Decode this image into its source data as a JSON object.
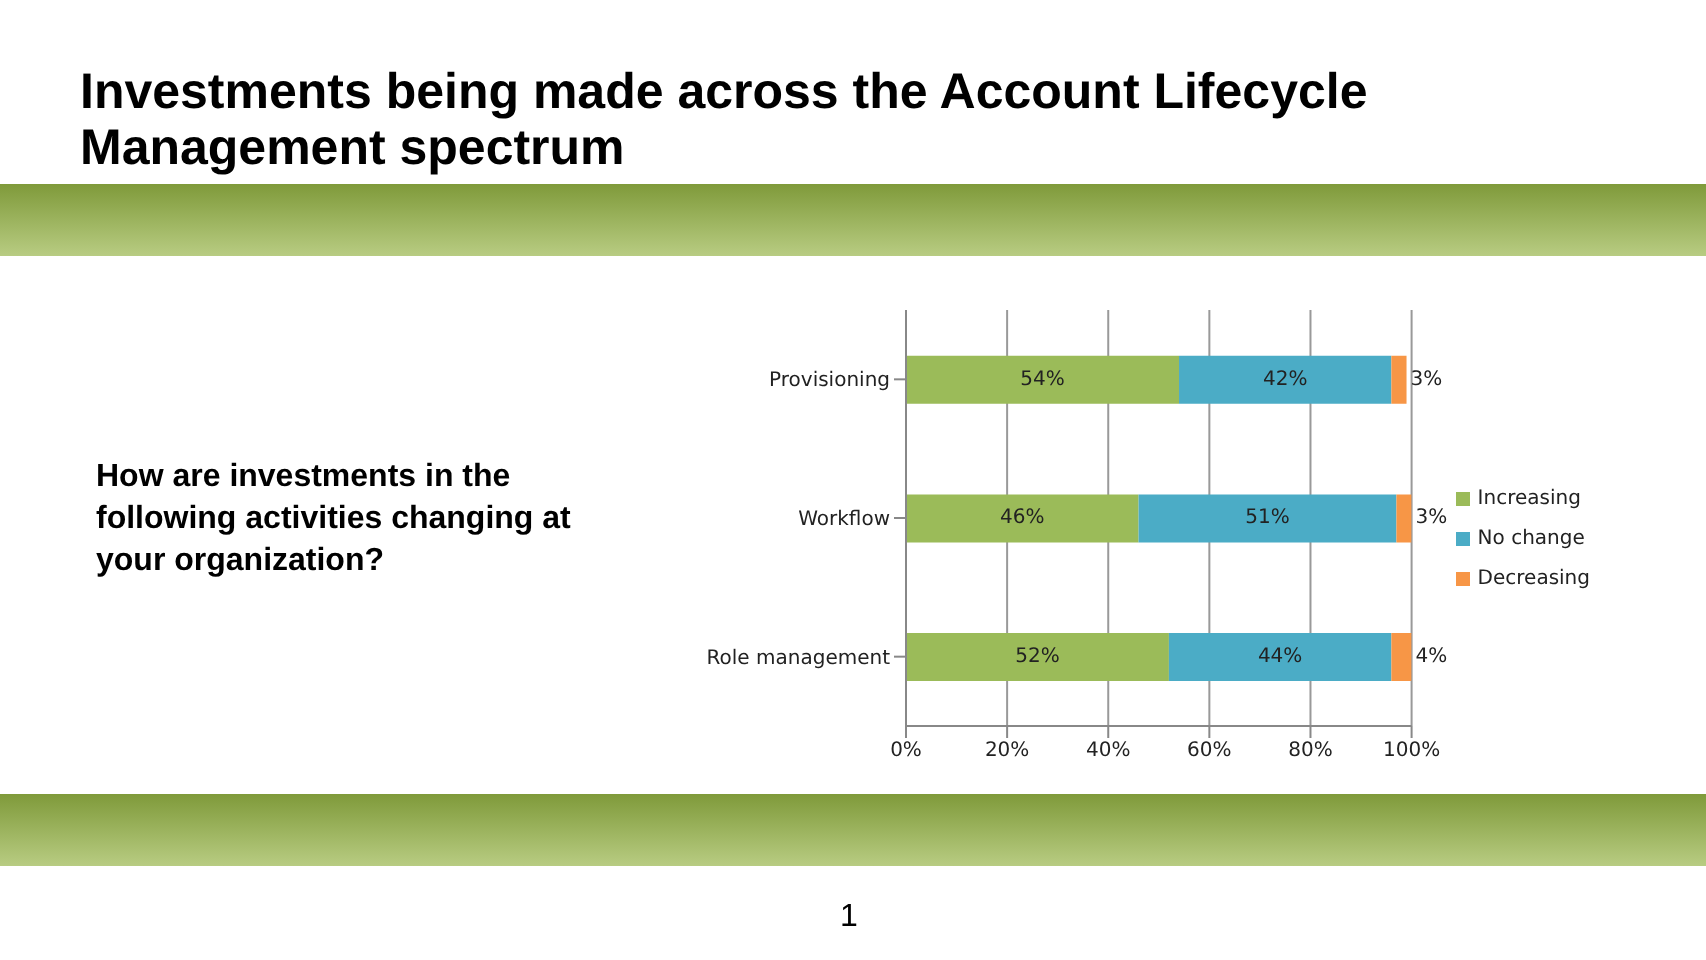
{
  "chart_data": {
    "type": "bar",
    "title": "Investments being made across the Account Lifecycle Management spectrum",
    "subtitle": "How are investments in the following activities changing at your organization?",
    "annotations": [
      "1"
    ],
    "orientation": "horizontal",
    "stacked": true,
    "categories": [
      "Provisioning",
      "Workflow",
      "Role management"
    ],
    "series": [
      {
        "name": "Increasing",
        "color": "#9bbb59",
        "values": [
          54,
          46,
          52
        ],
        "value_labels": [
          "54%",
          "46%",
          "52%"
        ]
      },
      {
        "name": "No change",
        "color": "#4bacc6",
        "values": [
          42,
          51,
          44
        ],
        "value_labels": [
          "42%",
          "51%",
          "44%"
        ]
      },
      {
        "name": "Decreasing",
        "color": "#f79646",
        "values": [
          3,
          3,
          4
        ],
        "value_labels": [
          "3%",
          "3%",
          "4%"
        ]
      }
    ],
    "xlim": [
      0,
      100
    ],
    "xticks": [
      {
        "value": 0,
        "label": "0%"
      },
      {
        "value": 20,
        "label": "20%"
      },
      {
        "value": 40,
        "label": "40%"
      },
      {
        "value": 60,
        "label": "60%"
      },
      {
        "value": 80,
        "label": "80%"
      },
      {
        "value": 100,
        "label": "100%"
      }
    ],
    "grid": "x",
    "legend": "right"
  }
}
